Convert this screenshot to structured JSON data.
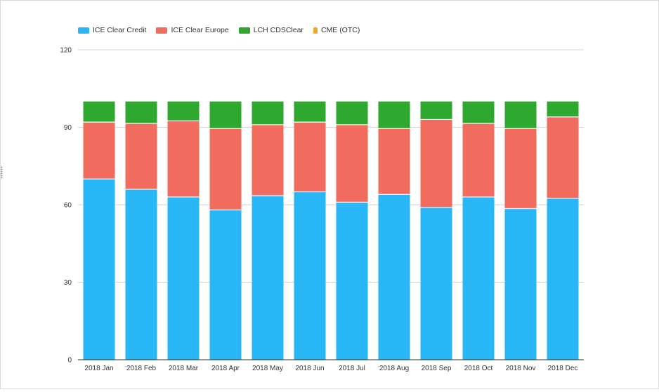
{
  "chart_data": {
    "type": "bar",
    "stacked": true,
    "categories": [
      "2018 Jan",
      "2018 Feb",
      "2018 Mar",
      "2018 Apr",
      "2018 May",
      "2018 Jun",
      "2018 Jul",
      "2018 Aug",
      "2018 Sep",
      "2018 Oct",
      "2018 Nov",
      "2018 Dec"
    ],
    "series": [
      {
        "name": "ICE Clear Credit",
        "color": "#29b6f6",
        "values": [
          70,
          66,
          63,
          58,
          63.5,
          65,
          61,
          64,
          59,
          63,
          58.5,
          62.5
        ]
      },
      {
        "name": "ICE Clear Europe",
        "color": "#f26b5f",
        "values": [
          22,
          25.5,
          29.5,
          31.5,
          27.5,
          27,
          30,
          25.5,
          34,
          28.5,
          31,
          31.5
        ]
      },
      {
        "name": "LCH CDSClear",
        "color": "#2ea82e",
        "values": [
          8,
          8.5,
          7.5,
          10.5,
          9,
          8,
          9,
          10.5,
          7,
          8.5,
          10.5,
          6
        ]
      },
      {
        "name": "CME (OTC)",
        "color": "#f5a623",
        "values": [
          0,
          0,
          0,
          0,
          0,
          0,
          0,
          0,
          0,
          0,
          0,
          0
        ]
      }
    ],
    "ylim": [
      0,
      120
    ],
    "yticks": [
      0,
      30,
      60,
      90,
      120
    ],
    "grid": true,
    "legend_position": "top-left"
  }
}
